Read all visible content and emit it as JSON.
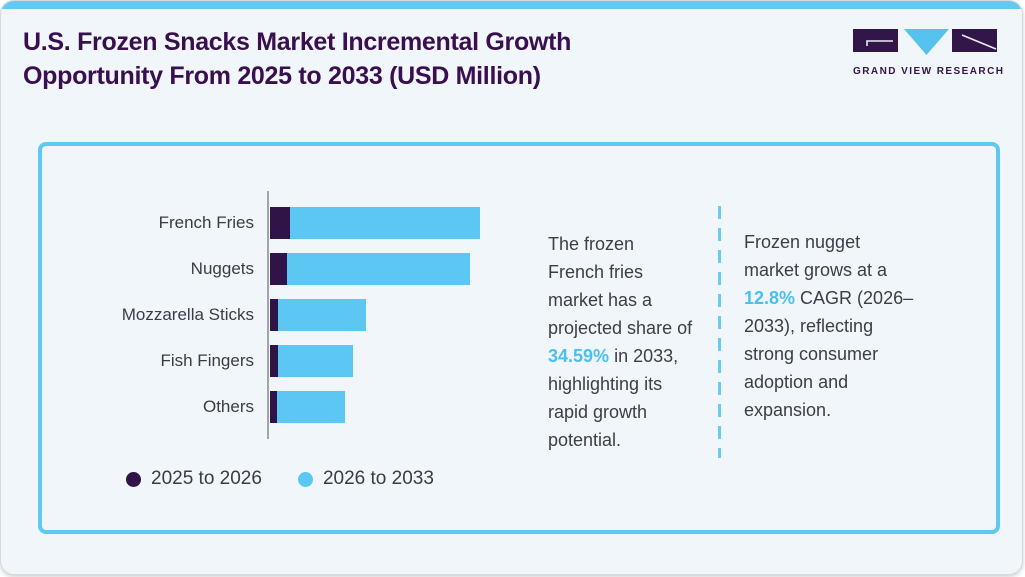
{
  "header": {
    "title": "U.S. Frozen Snacks Market Incremental Growth Opportunity From 2025 to 2033 (USD Million)",
    "logo": {
      "caption": "GRAND VIEW RESEARCH"
    }
  },
  "chart_data": {
    "type": "bar",
    "orientation": "horizontal",
    "stacked": true,
    "title": "U.S. Frozen Snacks Market Incremental Growth Opportunity From 2025 to 2033 (USD Million)",
    "value_units": "USD Million (value axis not labeled; values below are relative bar lengths in px)",
    "grid": false,
    "categories": [
      "French Fries",
      "Nuggets",
      "Mozzarella Sticks",
      "Fish Fingers",
      "Others"
    ],
    "series": [
      {
        "name": "2025 to 2026",
        "color": "#301349",
        "values_rel": [
          20,
          17,
          8,
          8,
          7
        ]
      },
      {
        "name": "2026 to 2033",
        "color": "#5cc7f2",
        "values_rel": [
          190,
          183,
          88,
          75,
          68
        ]
      }
    ],
    "totals_rel": [
      210,
      200,
      96,
      83,
      75
    ],
    "legend_position": "bottom-left"
  },
  "annotations": {
    "note1": {
      "before": "The frozen French fries market has a projected share of ",
      "highlight": "34.59%",
      "after": " in 2033, highlighting its rapid growth potential."
    },
    "note2": {
      "before": "Frozen nugget market grows at a ",
      "highlight": "12.8%",
      "after": " CAGR (2026–2033), reflecting strong consumer adoption and expansion."
    }
  },
  "colors": {
    "accent_blue": "#5cc7f2",
    "accent_purple": "#301349",
    "title_purple": "#390f50",
    "body_text": "#3d3d47",
    "highlight_blue": "#49c0ef",
    "panel_border": "#5fc9f1",
    "top_strip": "#64c9f1",
    "axis_gray": "#a2a6aa",
    "background": "#f0f6fa"
  }
}
